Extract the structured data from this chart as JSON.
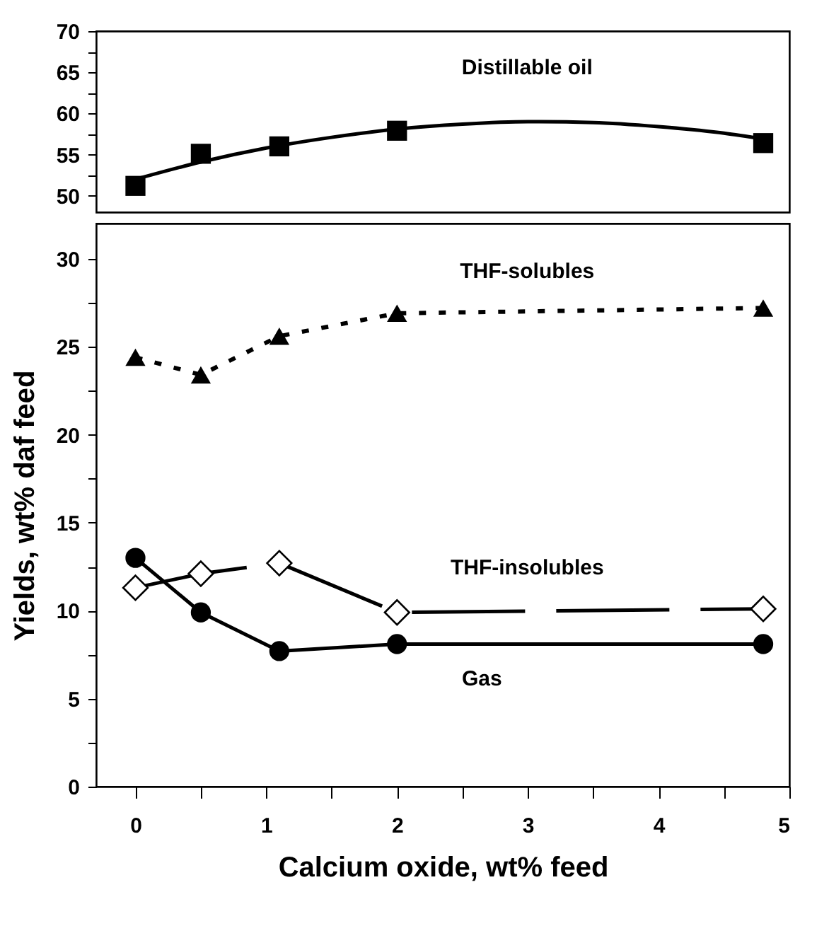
{
  "chart_data": [
    {
      "type": "line",
      "xlim": [
        -0.3,
        5
      ],
      "ylim": [
        48,
        70
      ],
      "yticks": [
        50,
        {
          "value": 52.5,
          "label": null
        },
        55,
        {
          "value": 57.5,
          "label": null
        },
        60,
        {
          "value": 62.5,
          "label": null
        },
        65,
        {
          "value": 67.5,
          "label": null
        },
        70
      ],
      "tick_labels": "y",
      "grid": false,
      "x": [
        0,
        0.5,
        1.1,
        2.0,
        4.8
      ],
      "series": [
        {
          "type": "scatter",
          "name": "Distillable oil",
          "color": "#000000",
          "marker": "square",
          "values": [
            51.2,
            55.1,
            56.0,
            57.9,
            56.4
          ]
        },
        {
          "color": "#000000",
          "marker": "none",
          "line_style": "solid",
          "x": [
            0,
            0.5,
            1,
            1.5,
            2,
            2.5,
            3,
            3.5,
            4,
            4.5,
            4.8
          ],
          "values": [
            52.0,
            54.1,
            55.8,
            57.1,
            58.1,
            58.7,
            59.0,
            58.9,
            58.4,
            57.6,
            56.9
          ]
        }
      ]
    },
    {
      "type": "line",
      "xlabel": "Calcium oxide, wt% feed",
      "ylabel": "Yields,  wt% daf feed",
      "xlim": [
        -0.3,
        5
      ],
      "ylim": [
        0,
        32
      ],
      "xticks": [
        0,
        {
          "value": 0.5,
          "label": null
        },
        1,
        {
          "value": 1.5,
          "label": null
        },
        2,
        {
          "value": 2.5,
          "label": null
        },
        3,
        {
          "value": 3.5,
          "label": null
        },
        4,
        {
          "value": 4.5,
          "label": null
        },
        5
      ],
      "yticks": [
        0,
        {
          "value": 2.5,
          "label": null
        },
        5,
        {
          "value": 7.5,
          "label": null
        },
        10,
        {
          "value": 12.5,
          "label": null
        },
        15,
        {
          "value": 17.5,
          "label": null
        },
        20,
        {
          "value": 22.5,
          "label": null
        },
        25,
        {
          "value": 27.5,
          "label": null
        },
        30
      ],
      "grid": false,
      "x": [
        0,
        0.5,
        1.1,
        2.0,
        4.8
      ],
      "series": [
        {
          "name": "THF-solubles",
          "color": "#000000",
          "marker": "triangle",
          "line_style": "dotted",
          "values": [
            24.4,
            23.4,
            25.6,
            26.9,
            27.2
          ]
        },
        {
          "name": "THF-insolubles",
          "color": "#000000",
          "marker": "diamond",
          "line_style": "dashed",
          "values": [
            11.3,
            12.1,
            12.7,
            9.9,
            10.1
          ]
        },
        {
          "name": "Gas",
          "color": "#000000",
          "marker": "circle",
          "line_style": "solid",
          "values": [
            13.0,
            9.9,
            7.7,
            8.1,
            8.1
          ]
        }
      ]
    }
  ]
}
